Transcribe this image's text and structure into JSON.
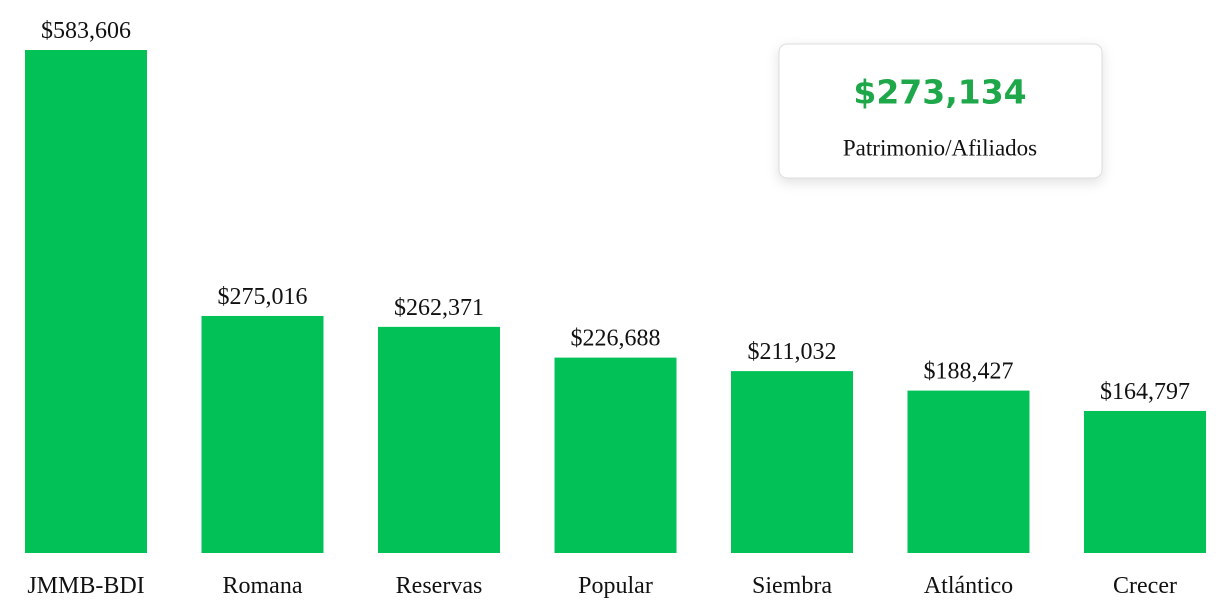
{
  "chart_data": {
    "type": "bar",
    "categories": [
      "JMMB-BDI",
      "Romana",
      "Reservas",
      "Popular",
      "Siembra",
      "Atlántico",
      "Crecer"
    ],
    "values": [
      583606,
      275016,
      262371,
      226688,
      211032,
      188427,
      164797
    ],
    "value_labels": [
      "$583,606",
      "$275,016",
      "$262,371",
      "$226,688",
      "$211,032",
      "$188,427",
      "$164,797"
    ],
    "color": "#02c157",
    "card": {
      "value": "$273,134",
      "label": "Patrimonio/Afiliados"
    }
  }
}
